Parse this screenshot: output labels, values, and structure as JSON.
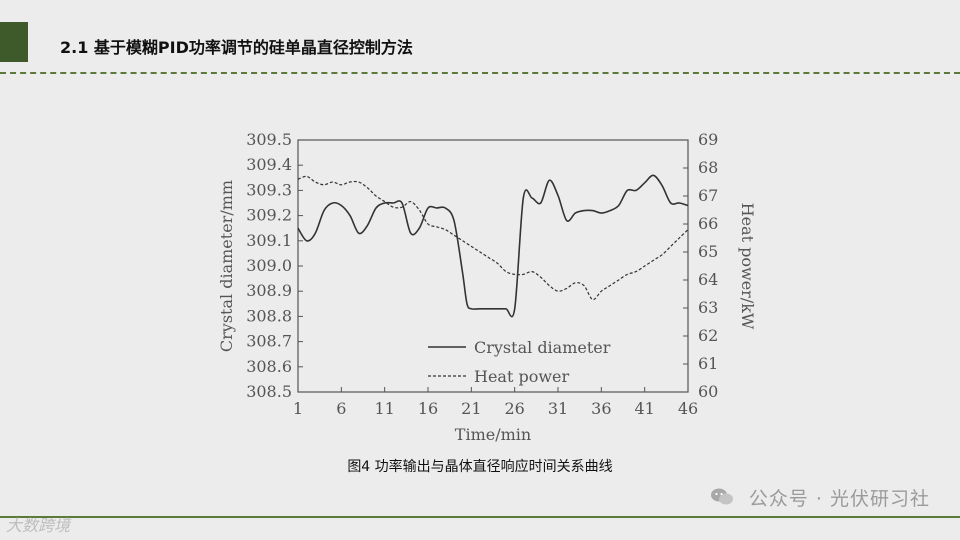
{
  "slide": {
    "title": "2.1 基于模糊PID功率调节的硅单晶直径控制方法",
    "caption": "图4 功率输出与晶体直径响应时间关系曲线",
    "watermark": "公众号 · 光伏研习社",
    "logo_text": "大数跨境"
  },
  "colors": {
    "accent": "#3f5a2a",
    "rule": "#5b7a3a",
    "plot_line": "#333333"
  },
  "chart_data": {
    "type": "line",
    "title": "",
    "xlabel": "Time/min",
    "ylabel_left": "Crystal diameter/mm",
    "ylabel_right": "Heat power/kW",
    "xlim": [
      1,
      46
    ],
    "ylim_left": [
      308.5,
      309.5
    ],
    "ylim_right": [
      60,
      69
    ],
    "x_ticks": [
      "1",
      "6",
      "11",
      "16",
      "21",
      "26",
      "31",
      "36",
      "41",
      "46"
    ],
    "y_ticks_left": [
      "309.5",
      "309.4",
      "309.3",
      "309.2",
      "309.1",
      "309.0",
      "308.9",
      "308.8",
      "308.7",
      "308.6",
      "308.5"
    ],
    "y_ticks_right": [
      "69",
      "68",
      "67",
      "66",
      "65",
      "64",
      "63",
      "62",
      "61",
      "60"
    ],
    "grid": false,
    "legend_position": "bottom-center",
    "series": [
      {
        "name": "Crystal diameter",
        "axis": "left",
        "style": "solid",
        "x": [
          1,
          2,
          3,
          4,
          5,
          6,
          7,
          8,
          9,
          10,
          11,
          12,
          13,
          14,
          15,
          16,
          17,
          18,
          19,
          20,
          20.5,
          21,
          22,
          23,
          24,
          25,
          26,
          27,
          28,
          29,
          30,
          31,
          32,
          33,
          34,
          35,
          36,
          37,
          38,
          39,
          40,
          41,
          42,
          43,
          44,
          45,
          46
        ],
        "y": [
          309.15,
          309.1,
          309.13,
          309.22,
          309.25,
          309.24,
          309.2,
          309.13,
          309.16,
          309.23,
          309.25,
          309.25,
          309.25,
          309.13,
          309.15,
          309.23,
          309.23,
          309.23,
          309.18,
          308.97,
          308.85,
          308.83,
          308.83,
          308.83,
          308.83,
          308.83,
          308.83,
          309.27,
          309.27,
          309.25,
          309.34,
          309.28,
          309.18,
          309.21,
          309.22,
          309.22,
          309.21,
          309.22,
          309.24,
          309.3,
          309.3,
          309.33,
          309.36,
          309.32,
          309.25,
          309.25,
          309.24
        ]
      },
      {
        "name": "Heat power",
        "axis": "right",
        "style": "dashed",
        "x": [
          1,
          2,
          3,
          4,
          5,
          6,
          7,
          8,
          9,
          10,
          11,
          12,
          13,
          14,
          15,
          16,
          17,
          18,
          19,
          20,
          21,
          22,
          23,
          24,
          25,
          26,
          27,
          28,
          29,
          30,
          31,
          32,
          33,
          34,
          35,
          36,
          37,
          38,
          39,
          40,
          41,
          42,
          43,
          44,
          45,
          46
        ],
        "y": [
          67.6,
          67.7,
          67.5,
          67.4,
          67.5,
          67.4,
          67.5,
          67.5,
          67.3,
          67.0,
          66.8,
          66.6,
          66.6,
          66.8,
          66.5,
          66.0,
          65.9,
          65.8,
          65.6,
          65.4,
          65.2,
          65.0,
          64.8,
          64.6,
          64.3,
          64.2,
          64.2,
          64.3,
          64.1,
          63.8,
          63.6,
          63.7,
          63.9,
          63.8,
          63.3,
          63.6,
          63.8,
          64.0,
          64.2,
          64.3,
          64.5,
          64.7,
          64.9,
          65.2,
          65.5,
          65.8
        ]
      }
    ]
  }
}
